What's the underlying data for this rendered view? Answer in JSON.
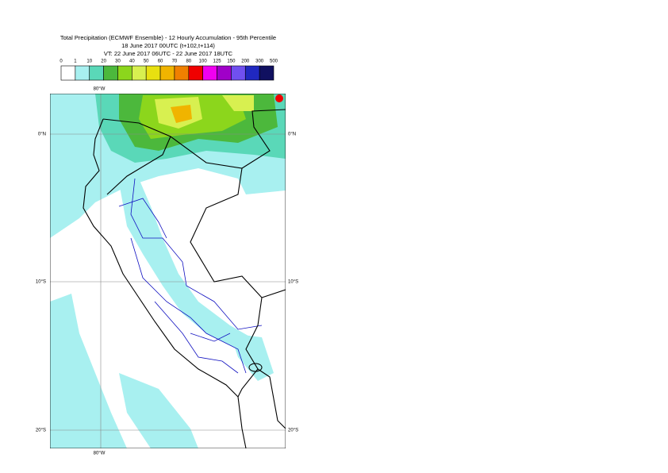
{
  "header": {
    "title": "Total Precipitation (ECMWF Ensemble) - 12 Hourly Accumulation - 95th Percentile",
    "base_time": "18 June 2017 00UTC (t+102,t+114)",
    "valid_time": "VT: 22 June 2017 06UTC - 22 June 2017 18UTC"
  },
  "legend": {
    "labels": [
      0,
      1,
      10,
      20,
      30,
      40,
      50,
      60,
      70,
      80,
      100,
      125,
      150,
      200,
      300,
      500
    ],
    "colors": [
      "#ffffff",
      "#a8f0f0",
      "#5ad8b8",
      "#4cb83c",
      "#8cd61c",
      "#d8f050",
      "#e8e010",
      "#f0b400",
      "#f08000",
      "#f00000",
      "#f000f0",
      "#a000c8",
      "#7050f0",
      "#2028c0",
      "#101060"
    ]
  },
  "map": {
    "lon_top": "80°W",
    "lon_bottom": "80°W",
    "lat_left": [
      "0°N",
      "10°S",
      "20°S"
    ],
    "lat_right": [
      "0°N",
      "10°S",
      "20°S"
    ]
  }
}
